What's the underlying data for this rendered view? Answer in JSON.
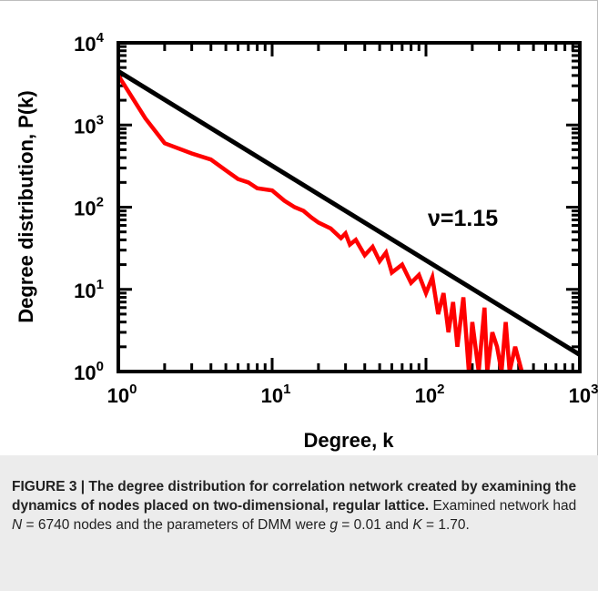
{
  "chart_data": {
    "type": "line",
    "xscale": "log",
    "yscale": "log",
    "xlim": [
      1,
      1000
    ],
    "ylim": [
      1,
      10000
    ],
    "xlabel": "Degree, k",
    "ylabel": "Degree distribution, P(k)",
    "x_ticks": [
      {
        "value": 1,
        "base": "10",
        "exp": "0"
      },
      {
        "value": 10,
        "base": "10",
        "exp": "1"
      },
      {
        "value": 100,
        "base": "10",
        "exp": "2"
      },
      {
        "value": 1000,
        "base": "10",
        "exp": "3"
      }
    ],
    "y_ticks": [
      {
        "value": 1,
        "base": "10",
        "exp": "0"
      },
      {
        "value": 10,
        "base": "10",
        "exp": "1"
      },
      {
        "value": 100,
        "base": "10",
        "exp": "2"
      },
      {
        "value": 1000,
        "base": "10",
        "exp": "3"
      },
      {
        "value": 10000,
        "base": "10",
        "exp": "4"
      }
    ],
    "annotation": "ν=1.15",
    "series": [
      {
        "color": "#ff0000",
        "x": [
          1,
          1.5,
          2,
          3,
          4,
          5,
          6,
          7,
          8,
          10,
          12,
          14,
          16,
          18,
          20,
          24,
          28,
          30,
          32,
          35,
          40,
          45,
          50,
          55,
          60,
          70,
          80,
          90,
          100,
          110,
          120,
          130,
          140,
          150,
          160,
          175,
          190,
          200,
          220,
          240,
          250,
          270,
          290,
          310,
          330,
          350,
          380,
          420
        ],
        "y": [
          4000,
          1200,
          600,
          450,
          380,
          280,
          220,
          200,
          170,
          160,
          120,
          100,
          90,
          75,
          65,
          55,
          42,
          48,
          35,
          40,
          26,
          33,
          22,
          28,
          16,
          20,
          12,
          15,
          9,
          14,
          5,
          9,
          3,
          7,
          2,
          8,
          1,
          4,
          1,
          6,
          1,
          3,
          2,
          1,
          4,
          1,
          2,
          1
        ]
      },
      {
        "color": "#000000",
        "x": [
          1,
          1000
        ],
        "y": [
          4500,
          1.6
        ]
      }
    ]
  },
  "caption": {
    "figure_label": "FIGURE 3 | The degree distribution for correlation network created by examining the dynamics of nodes placed on two-dimensional, regular lattice.",
    "text_part1": " Examined network had ",
    "var_n": "N",
    "text_part2": " = 6740 nodes and the parameters of DMM were ",
    "var_g": "g",
    "text_part3": " = 0.01 and ",
    "var_k": "K",
    "text_part4": " = 1.70."
  }
}
